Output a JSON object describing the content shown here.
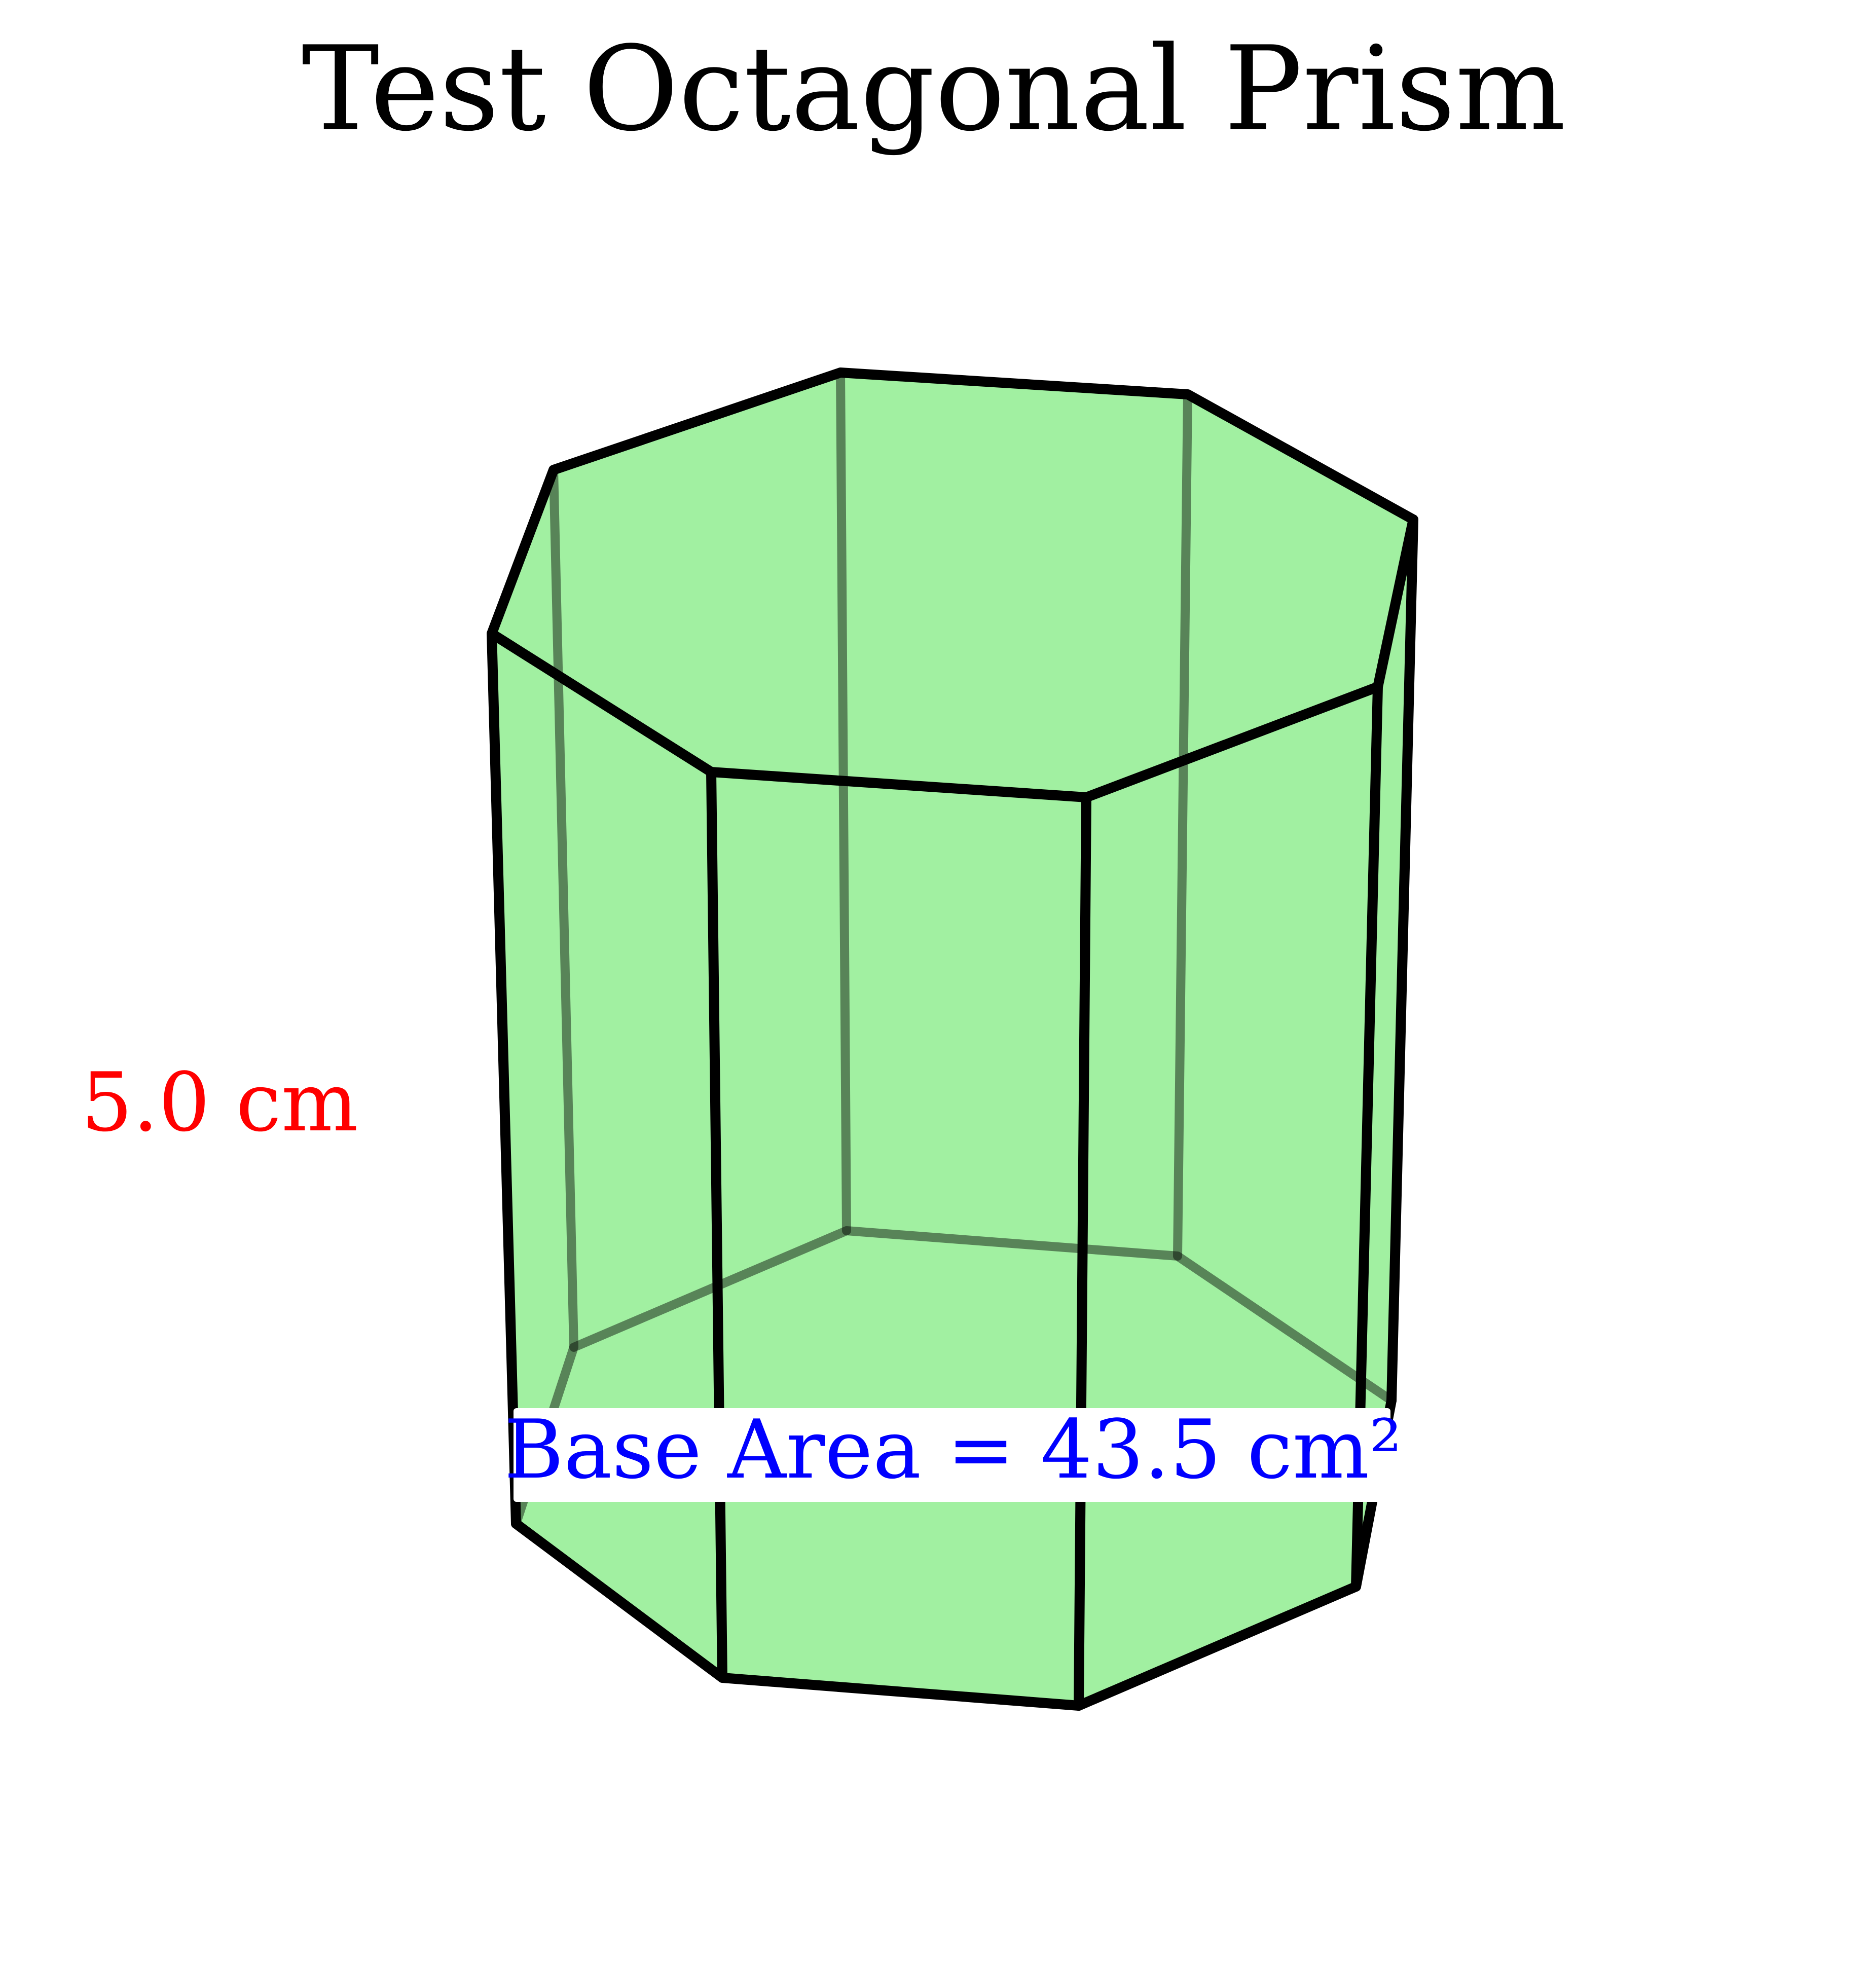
{
  "title": "Test Octagonal Prism",
  "height_label": "5.0 cm",
  "base_area_label": "Base Area = 43.5 cm²",
  "colors": {
    "face_fill": "#a1f0a1",
    "edge": "#000000",
    "height_label": "#ff0000",
    "base_area_label": "#0000ff",
    "title": "#000000"
  }
}
